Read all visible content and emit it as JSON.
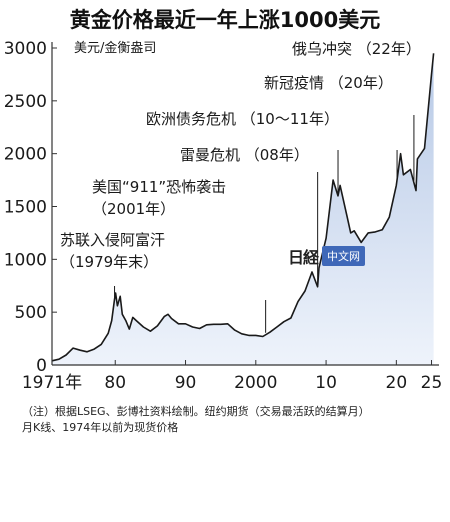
{
  "title": "黄金价格最近一年上涨1000美元",
  "chart_data": {
    "type": "area",
    "ylabel": "美元/金衡盎司",
    "ylim": [
      0,
      3000
    ],
    "yticks": [
      0,
      500,
      1000,
      1500,
      2000,
      2500,
      3000
    ],
    "xlim": [
      1971,
      2025.5
    ],
    "xticks": [
      {
        "x": 1971,
        "label": "1971年"
      },
      {
        "x": 1980,
        "label": "80"
      },
      {
        "x": 1990,
        "label": "90"
      },
      {
        "x": 2000,
        "label": "2000"
      },
      {
        "x": 2010,
        "label": "10"
      },
      {
        "x": 2020,
        "label": "20"
      },
      {
        "x": 2025,
        "label": "25"
      }
    ],
    "grid": false,
    "colors": {
      "line": "#1a1a1a",
      "fill_top": "#b7c9e6",
      "fill_bottom": "#eef3fb",
      "axis": "#333333"
    },
    "series": [
      {
        "x": [
          1971,
          1972,
          1973,
          1974,
          1975,
          1976,
          1977,
          1978,
          1979,
          1979.5,
          1979.9,
          1980.05,
          1980.3,
          1980.7,
          1981,
          1981.5,
          1982,
          1982.5,
          1983,
          1984,
          1985,
          1986,
          1987,
          1987.5,
          1988,
          1989,
          1990,
          1991,
          1992,
          1993,
          1994,
          1995,
          1996,
          1997,
          1998,
          1999,
          2000,
          2001,
          2002,
          2003,
          2004,
          2005,
          2006,
          2007,
          2008,
          2008.8,
          2009,
          2010,
          2011,
          2011.7,
          2012,
          2013,
          2013.5,
          2014,
          2015,
          2016,
          2017,
          2018,
          2019,
          2020,
          2020.6,
          2021,
          2022,
          2022.8,
          2023,
          2024,
          2024.5,
          2025,
          2025.3
        ],
        "y": [
          40,
          55,
          95,
          160,
          140,
          125,
          150,
          195,
          300,
          420,
          620,
          680,
          560,
          650,
          480,
          420,
          340,
          450,
          420,
          360,
          320,
          370,
          460,
          480,
          440,
          390,
          390,
          360,
          345,
          380,
          385,
          385,
          390,
          330,
          295,
          280,
          280,
          270,
          310,
          360,
          410,
          445,
          600,
          700,
          880,
          740,
          920,
          1200,
          1750,
          1600,
          1700,
          1400,
          1250,
          1270,
          1160,
          1250,
          1260,
          1280,
          1400,
          1700,
          2000,
          1800,
          1850,
          1650,
          1950,
          2050,
          2400,
          2750,
          2950
        ]
      }
    ],
    "annotations": [
      {
        "x": 1979.9,
        "lines": [
          "苏联入侵阿富汗",
          "（1979年末）"
        ]
      },
      {
        "x": 2001.4,
        "lines": [
          "美国“911”恐怖袭击",
          "（2001年）"
        ]
      },
      {
        "x": 2008.8,
        "lines": [
          "雷曼危机 （08年）"
        ]
      },
      {
        "x": 2011.7,
        "lines": [
          "欧洲债务危机 （10～11年）"
        ]
      },
      {
        "x": 2020.1,
        "lines": [
          "新冠疫情 （20年）"
        ]
      },
      {
        "x": 2022.5,
        "lines": [
          "俄乌冲突 （22年）"
        ]
      }
    ]
  },
  "watermark": {
    "logo": "日経",
    "label": "中文网"
  },
  "notes": [
    "（注）根据LSEG、彭博社资料绘制。纽约期货（交易最活跃的结算月）",
    "月K线、1974年以前为现货价格"
  ]
}
